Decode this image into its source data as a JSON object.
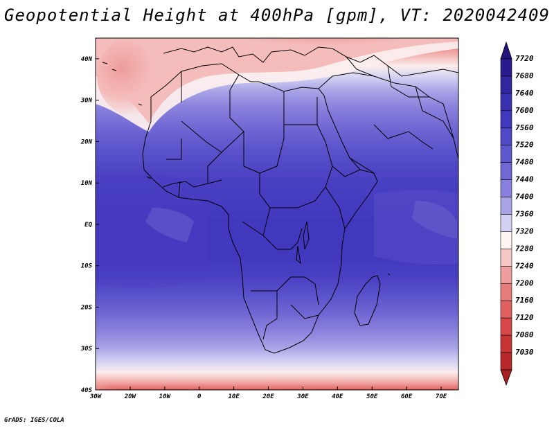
{
  "title": "Geopotential Height at 400hPa [gpm], VT: 2020042409",
  "credit": "GrADS: IGES/COLA",
  "map": {
    "region": "Africa",
    "lat_range": [
      -40,
      45
    ],
    "lon_range": [
      -30,
      75
    ],
    "lat_labels": [
      {
        "lat": 40,
        "label": "40N"
      },
      {
        "lat": 30,
        "label": "30N"
      },
      {
        "lat": 20,
        "label": "20N"
      },
      {
        "lat": 10,
        "label": "10N"
      },
      {
        "lat": 0,
        "label": "EQ"
      },
      {
        "lat": -10,
        "label": "10S"
      },
      {
        "lat": -20,
        "label": "20S"
      },
      {
        "lat": -30,
        "label": "30S"
      },
      {
        "lat": -40,
        "label": "40S"
      }
    ],
    "lon_labels": [
      {
        "lon": -30,
        "label": "30W"
      },
      {
        "lon": -20,
        "label": "20W"
      },
      {
        "lon": -10,
        "label": "10W"
      },
      {
        "lon": 0,
        "label": "0"
      },
      {
        "lon": 10,
        "label": "10E"
      },
      {
        "lon": 20,
        "label": "20E"
      },
      {
        "lon": 30,
        "label": "30E"
      },
      {
        "lon": 40,
        "label": "40E"
      },
      {
        "lon": 50,
        "label": "50E"
      },
      {
        "lon": 60,
        "label": "60E"
      },
      {
        "lon": 70,
        "label": "70E"
      }
    ]
  },
  "colorbar": {
    "units": "gpm",
    "levels": [
      {
        "value": "7720",
        "color": "#2a1a90"
      },
      {
        "value": "7680",
        "color": "#3226a0"
      },
      {
        "value": "7640",
        "color": "#3a30b0"
      },
      {
        "value": "7600",
        "color": "#4238be"
      },
      {
        "value": "7560",
        "color": "#5048c6"
      },
      {
        "value": "7520",
        "color": "#5e58cc"
      },
      {
        "value": "7480",
        "color": "#7068d4"
      },
      {
        "value": "7440",
        "color": "#8880dc"
      },
      {
        "value": "7400",
        "color": "#a8a4e6"
      },
      {
        "value": "7360",
        "color": "#d4d2f2"
      },
      {
        "value": "7320",
        "color": "#fff6f4"
      },
      {
        "value": "7280",
        "color": "#f6c8c6"
      },
      {
        "value": "7240",
        "color": "#ee9e9c"
      },
      {
        "value": "7200",
        "color": "#e67c7a"
      },
      {
        "value": "7160",
        "color": "#e06060"
      },
      {
        "value": "7120",
        "color": "#d84848"
      },
      {
        "value": "7080",
        "color": "#c83434"
      },
      {
        "value": "7030",
        "color": "#b82828"
      }
    ],
    "top_arrow_color": "#22147c",
    "bottom_arrow_color": "#a82020"
  }
}
